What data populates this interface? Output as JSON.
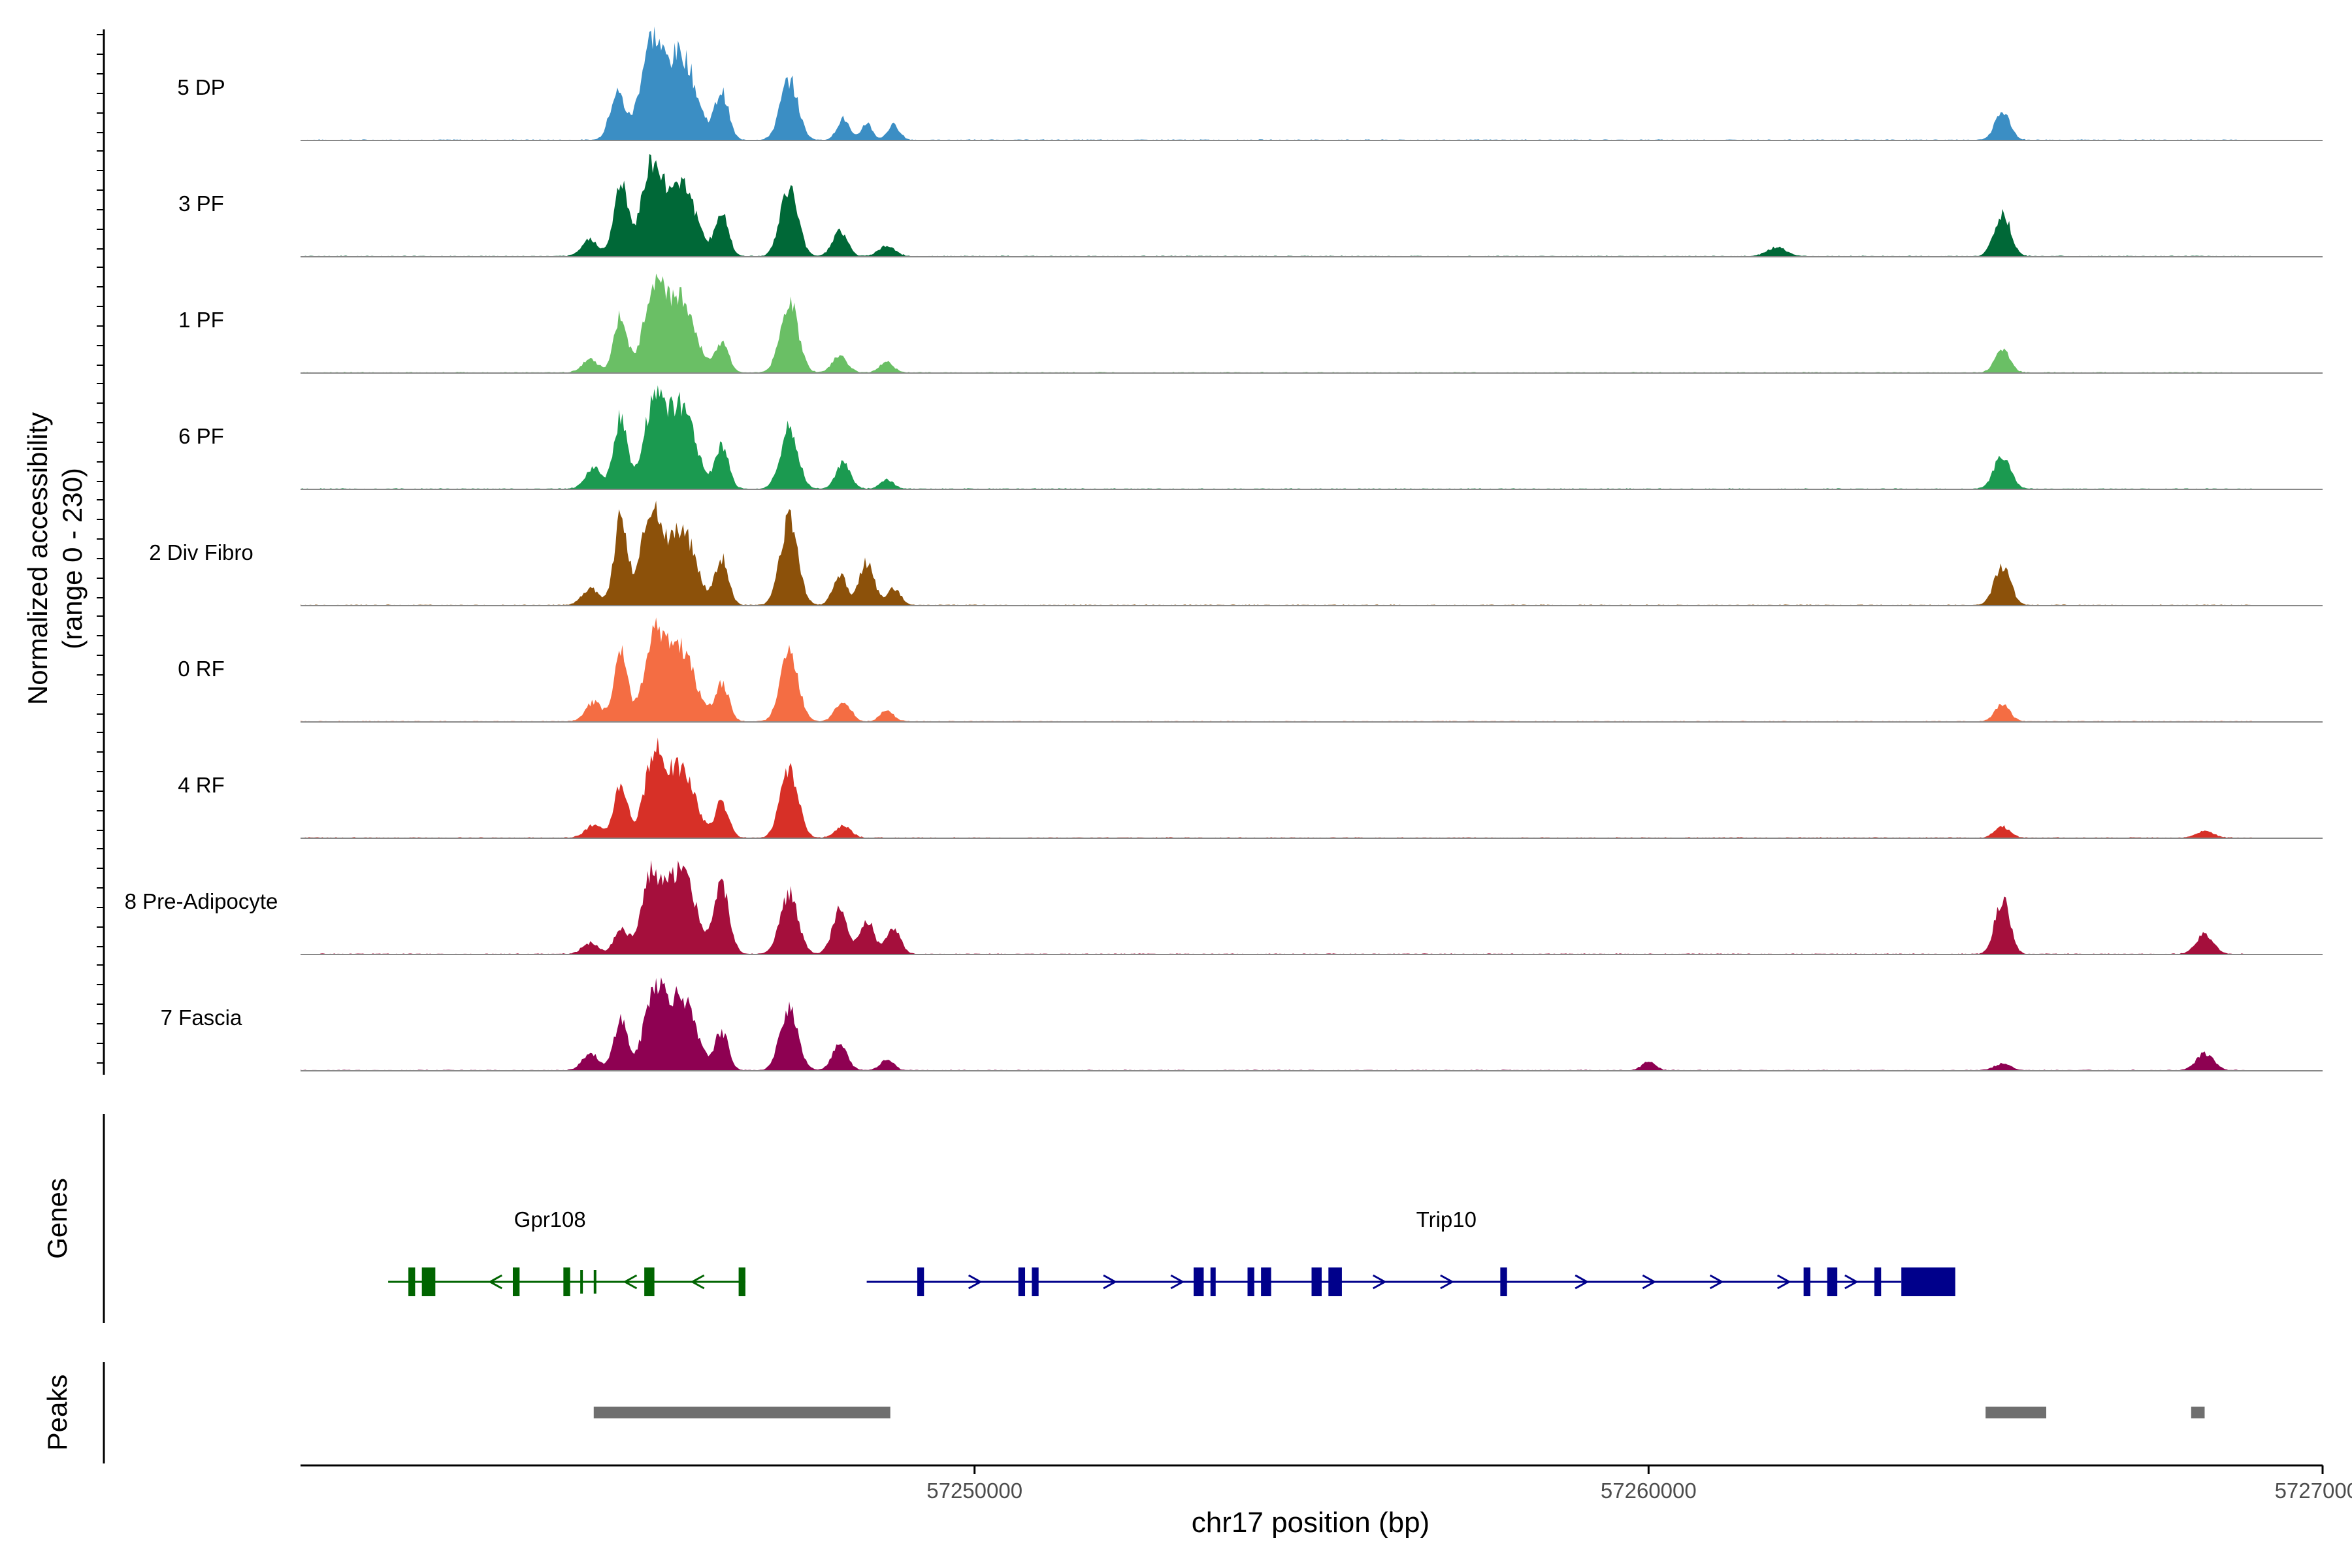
{
  "chart_data": {
    "type": "area",
    "title": "",
    "xlabel": "chr17 position (bp)",
    "ylabel_line1": "Normalized accessibility",
    "ylabel_line2": "(range 0 - 230)",
    "ylim": [
      0,
      230
    ],
    "xlim": [
      57240000,
      57270000
    ],
    "x_ticks": [
      57250000,
      57260000,
      57270000
    ],
    "x_tick_labels": [
      "57250000",
      "57260000",
      "57270000"
    ],
    "series": [
      {
        "name": "5 DP",
        "color": "#3B8EC4",
        "peaks": [
          [
            57244700,
            110,
            110
          ],
          [
            57245200,
            220,
            160
          ],
          [
            57245650,
            200,
            210
          ],
          [
            57246250,
            110,
            100
          ],
          [
            57247250,
            140,
            130
          ],
          [
            57248050,
            50,
            90
          ],
          [
            57248400,
            40,
            80
          ],
          [
            57248800,
            35,
            90
          ]
        ],
        "far_peaks": [
          [
            57265250,
            65,
            110
          ]
        ]
      },
      {
        "name": "3 PF",
        "color": "#006837",
        "peaks": [
          [
            57244300,
            40,
            120
          ],
          [
            57244750,
            170,
            100
          ],
          [
            57245200,
            210,
            150
          ],
          [
            57245650,
            180,
            200
          ],
          [
            57246250,
            100,
            100
          ],
          [
            57247250,
            160,
            130
          ],
          [
            57248000,
            60,
            110
          ],
          [
            57248700,
            25,
            120
          ]
        ],
        "far_peaks": [
          [
            57261900,
            20,
            150
          ],
          [
            57265250,
            100,
            120
          ]
        ]
      },
      {
        "name": "1 PF",
        "color": "#6ABF65",
        "peaks": [
          [
            57244300,
            30,
            120
          ],
          [
            57244750,
            130,
            100
          ],
          [
            57245250,
            200,
            150
          ],
          [
            57245650,
            170,
            200
          ],
          [
            57246250,
            70,
            100
          ],
          [
            57247250,
            170,
            130
          ],
          [
            57248000,
            40,
            110
          ],
          [
            57248700,
            25,
            100
          ]
        ],
        "far_peaks": [
          [
            57265250,
            55,
            110
          ]
        ]
      },
      {
        "name": "6 PF",
        "color": "#1B9A50",
        "peaks": [
          [
            57244350,
            50,
            120
          ],
          [
            57244750,
            170,
            100
          ],
          [
            57245250,
            200,
            150
          ],
          [
            57245650,
            190,
            200
          ],
          [
            57246250,
            100,
            100
          ],
          [
            57247250,
            140,
            130
          ],
          [
            57248050,
            60,
            110
          ],
          [
            57248700,
            20,
            100
          ]
        ],
        "far_peaks": [
          [
            57265250,
            80,
            120
          ]
        ]
      },
      {
        "name": "2 Div Fibro",
        "color": "#8C510A",
        "peaks": [
          [
            57244300,
            40,
            120
          ],
          [
            57244750,
            200,
            100
          ],
          [
            57245200,
            220,
            150
          ],
          [
            57245650,
            180,
            200
          ],
          [
            57246250,
            110,
            100
          ],
          [
            57247250,
            200,
            130
          ],
          [
            57248000,
            70,
            100
          ],
          [
            57248400,
            100,
            110
          ],
          [
            57248800,
            40,
            100
          ]
        ],
        "far_peaks": [
          [
            57265250,
            90,
            120
          ]
        ]
      },
      {
        "name": "0 RF",
        "color": "#F46D43",
        "peaks": [
          [
            57244350,
            45,
            120
          ],
          [
            57244750,
            160,
            100
          ],
          [
            57245250,
            200,
            150
          ],
          [
            57245650,
            170,
            200
          ],
          [
            57246250,
            90,
            100
          ],
          [
            57247250,
            170,
            130
          ],
          [
            57248050,
            50,
            110
          ],
          [
            57248700,
            25,
            100
          ]
        ],
        "far_peaks": [
          [
            57265250,
            40,
            110
          ]
        ]
      },
      {
        "name": "4 RF",
        "color": "#D73027",
        "peaks": [
          [
            57244350,
            30,
            120
          ],
          [
            57244750,
            130,
            100
          ],
          [
            57245250,
            180,
            150
          ],
          [
            57245650,
            160,
            200
          ],
          [
            57246250,
            80,
            100
          ],
          [
            57247250,
            160,
            130
          ],
          [
            57248050,
            30,
            110
          ]
        ],
        "far_peaks": [
          [
            57265250,
            25,
            110
          ],
          [
            57268250,
            15,
            130
          ]
        ]
      },
      {
        "name": "8 Pre-Adipocyte",
        "color": "#A50F3C",
        "peaks": [
          [
            57244300,
            25,
            120
          ],
          [
            57244750,
            60,
            100
          ],
          [
            57245200,
            180,
            150
          ],
          [
            57245650,
            200,
            200
          ],
          [
            57246250,
            160,
            110
          ],
          [
            57247250,
            140,
            130
          ],
          [
            57248000,
            100,
            110
          ],
          [
            57248400,
            80,
            110
          ],
          [
            57248800,
            60,
            100
          ]
        ],
        "far_peaks": [
          [
            57265250,
            130,
            110
          ],
          [
            57268250,
            45,
            130
          ]
        ]
      },
      {
        "name": "7 Fascia",
        "color": "#8E0152",
        "peaks": [
          [
            57244300,
            40,
            120
          ],
          [
            57244750,
            120,
            100
          ],
          [
            57245250,
            180,
            150
          ],
          [
            57245650,
            170,
            200
          ],
          [
            57246250,
            90,
            100
          ],
          [
            57247250,
            150,
            130
          ],
          [
            57248000,
            60,
            110
          ],
          [
            57248700,
            25,
            100
          ]
        ],
        "far_peaks": [
          [
            57260000,
            20,
            100
          ],
          [
            57265250,
            15,
            120
          ],
          [
            57268250,
            40,
            130
          ]
        ]
      }
    ],
    "genes_label": "Genes",
    "genes": [
      {
        "name": "Gpr108",
        "color": "#006400",
        "strand": "-",
        "start": 57241300,
        "end": 57246600,
        "exons": [
          [
            57241600,
            57241700
          ],
          [
            57241800,
            57242000
          ],
          [
            57243150,
            57243250
          ],
          [
            57243900,
            57244000
          ],
          [
            57245100,
            57245250
          ],
          [
            57246500,
            57246600
          ]
        ],
        "small_exons": [
          [
            57244150,
            57244200
          ],
          [
            57244350,
            57244400
          ]
        ]
      },
      {
        "name": "Trip10",
        "color": "#00008B",
        "strand": "+",
        "start": 57248400,
        "end": 57263750,
        "exons": [
          [
            57249150,
            57249250
          ],
          [
            57250650,
            57250750
          ],
          [
            57250850,
            57250950
          ],
          [
            57253250,
            57253400
          ],
          [
            57253500,
            57253550
          ],
          [
            57254050,
            57254150
          ],
          [
            57254250,
            57254400
          ],
          [
            57255000,
            57255150
          ],
          [
            57255250,
            57255450
          ],
          [
            57257800,
            57257900
          ],
          [
            57262300,
            57262400
          ],
          [
            57262650,
            57262800
          ],
          [
            57263350,
            57263450
          ],
          [
            57263750,
            57264550
          ]
        ],
        "small_exons": []
      }
    ],
    "peaks_label": "Peaks",
    "peak_regions": [
      [
        57244350,
        57248750
      ],
      [
        57265000,
        57265900
      ],
      [
        57268050,
        57268250
      ]
    ]
  }
}
